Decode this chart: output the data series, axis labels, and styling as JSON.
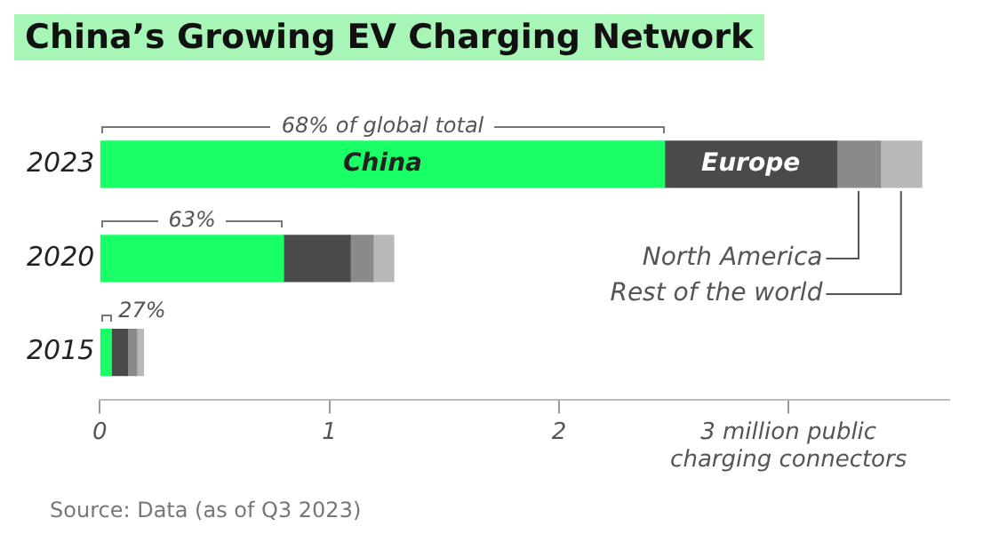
{
  "chart_data": {
    "type": "bar",
    "orientation": "horizontal",
    "stacked": true,
    "title": "China’s Growing EV Charging Network",
    "categories": [
      "2023",
      "2020",
      "2015"
    ],
    "series": [
      {
        "name": "China",
        "color": "#19ff66",
        "values": [
          2.46,
          0.8,
          0.05
        ]
      },
      {
        "name": "Europe",
        "color": "#4a4a4a",
        "values": [
          0.75,
          0.29,
          0.07
        ]
      },
      {
        "name": "North America",
        "color": "#8a8a8a",
        "values": [
          0.19,
          0.1,
          0.04
        ]
      },
      {
        "name": "Rest of the world",
        "color": "#b8b8b8",
        "values": [
          0.18,
          0.09,
          0.03
        ]
      }
    ],
    "xlim": [
      0,
      3.7
    ],
    "xticks": [
      0,
      1,
      2,
      {
        "value": 3,
        "label": "3 million public\ncharging connectors"
      }
    ],
    "grid": false,
    "legend": false,
    "annotations": [
      "68% of global total",
      "63%",
      "27%",
      "Source: Data (as of Q3 2023)"
    ]
  }
}
